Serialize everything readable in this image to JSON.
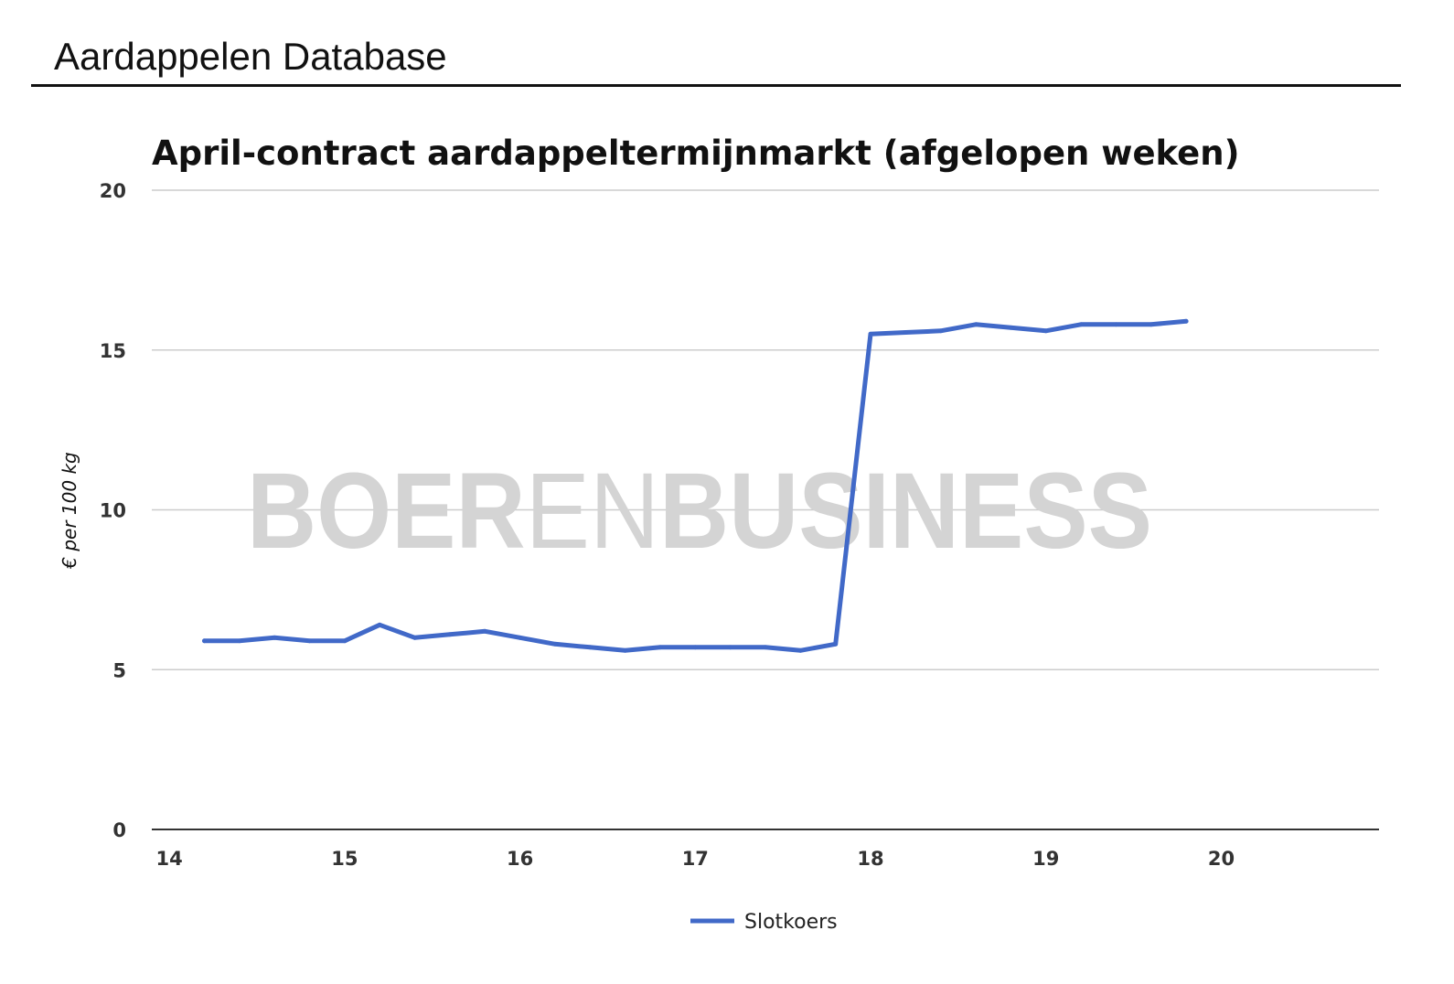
{
  "header": {
    "title": "Aardappelen Database"
  },
  "watermark": {
    "part1": "BOER",
    "part2": "EN",
    "part3": "BUSINESS"
  },
  "chart_data": {
    "type": "line",
    "title": "April-contract aardappeltermijnmarkt (afgelopen weken)",
    "xlabel": "",
    "ylabel": "€ per 100 kg",
    "xlim": [
      13.9,
      20.9
    ],
    "ylim": [
      0,
      20
    ],
    "xticks": [
      14,
      15,
      16,
      17,
      18,
      19,
      20
    ],
    "yticks": [
      0,
      5,
      10,
      15,
      20
    ],
    "grid": true,
    "legend": "bottom",
    "series": [
      {
        "name": "Slotkoers",
        "color": "#4169c8",
        "x": [
          14.2,
          14.4,
          14.6,
          14.8,
          15.0,
          15.2,
          15.4,
          15.6,
          15.8,
          16.0,
          16.2,
          16.4,
          16.6,
          16.8,
          17.0,
          17.2,
          17.4,
          17.6,
          17.8,
          18.0,
          18.2,
          18.4,
          18.6,
          18.8,
          19.0,
          19.2,
          19.4,
          19.6,
          19.8
        ],
        "y": [
          5.9,
          5.9,
          6.0,
          5.9,
          5.9,
          6.4,
          6.0,
          6.1,
          6.2,
          6.0,
          5.8,
          5.7,
          5.6,
          5.7,
          5.7,
          5.7,
          5.7,
          5.6,
          5.8,
          15.5,
          15.55,
          15.6,
          15.8,
          15.7,
          15.6,
          15.8,
          15.8,
          15.8,
          15.9
        ]
      }
    ]
  }
}
